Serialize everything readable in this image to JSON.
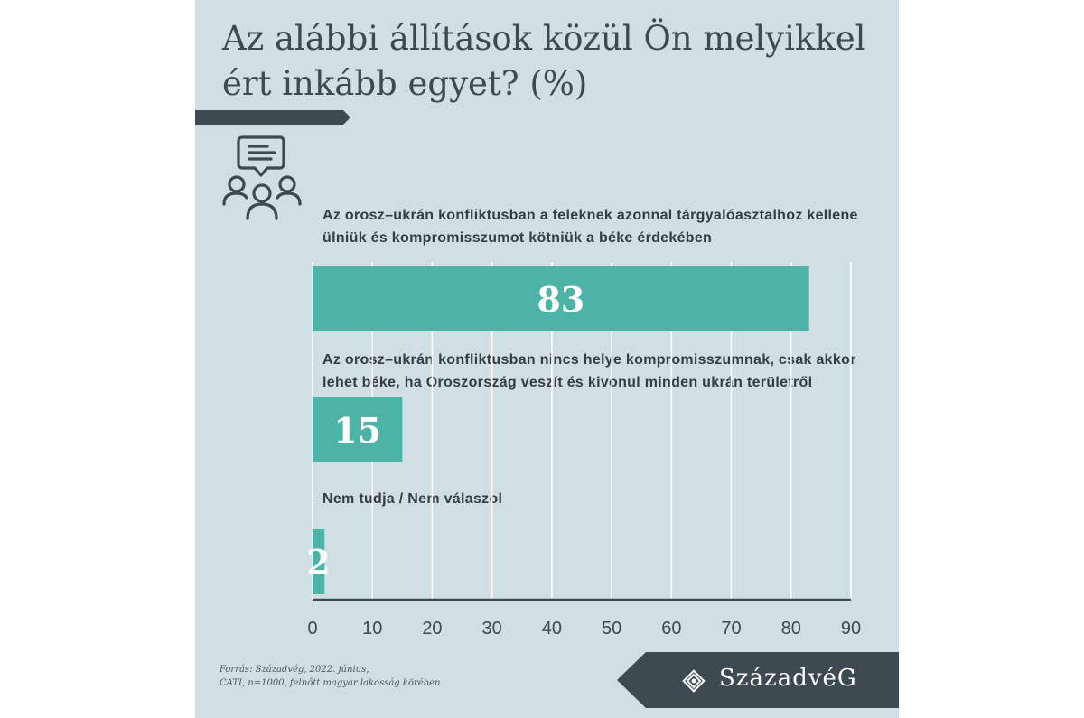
{
  "title": "Az alábbi állítások közül Ön melyikkel ért inkább egyet? (%)",
  "source_line1": "Forrás: Századvég, 2022. június,",
  "source_line2": "CATI, n=1000, felnőtt magyar lakosság körében",
  "brand": "SzázadvéG",
  "icons": [
    "people-discussion-icon",
    "logo-emblem-icon"
  ],
  "colors": {
    "background": "#cfdfe3",
    "bar": "#4db3a6",
    "dark": "#3d4a52",
    "grid": "#ffffff"
  },
  "chart_data": {
    "type": "bar",
    "orientation": "horizontal",
    "categories": [
      "Az orosz–ukrán konfliktusban a feleknek azonnal tárgyalóasztalhoz kellene ülniük és kompromisszumot kötniük a béke érdekében",
      "Az orosz–ukrán konfliktusban nincs helye kompromisszumnak, csak akkor lehet béke, ha Oroszország veszít és kivonul minden ukrán területről",
      "Nem tudja / Nem válaszol"
    ],
    "values": [
      83,
      15,
      2
    ],
    "value_labels": [
      "83",
      "15",
      "2"
    ],
    "xlim": [
      0,
      90
    ],
    "xticks": [
      "0",
      "10",
      "20",
      "30",
      "40",
      "50",
      "60",
      "70",
      "80",
      "90"
    ],
    "grid": true
  }
}
